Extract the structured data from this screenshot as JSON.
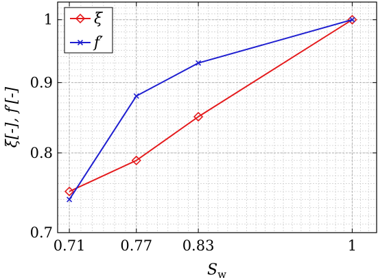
{
  "chart_data": {
    "type": "line",
    "xscale": "log",
    "yscale": "log",
    "xlim": [
      0.7,
      1.03
    ],
    "ylim": [
      0.7,
      1.03
    ],
    "xticks": [
      0.71,
      0.77,
      0.83,
      1
    ],
    "xtick_labels": [
      "0.71",
      "0.77",
      "0.83",
      "1"
    ],
    "yticks": [
      0.7,
      0.8,
      0.9,
      1
    ],
    "ytick_labels": [
      "0.7",
      "0.8",
      "0.9",
      "1"
    ],
    "xlabel": "S_w",
    "xlabel_main": "S",
    "xlabel_sub": "w",
    "ylabel": "ξ[-], f′[-]",
    "grid": true,
    "legend_position": "top-left",
    "series": [
      {
        "name": "ξ",
        "color": "#e41a1c",
        "marker": "diamond",
        "x": [
          0.71,
          0.77,
          0.83,
          1
        ],
        "y": [
          0.75,
          0.79,
          0.85,
          1.0
        ]
      },
      {
        "name": "f′",
        "color": "#1f1fd0",
        "marker": "x",
        "x": [
          0.71,
          0.77,
          0.83,
          1
        ],
        "y": [
          0.74,
          0.88,
          0.93,
          1.0
        ]
      }
    ]
  }
}
